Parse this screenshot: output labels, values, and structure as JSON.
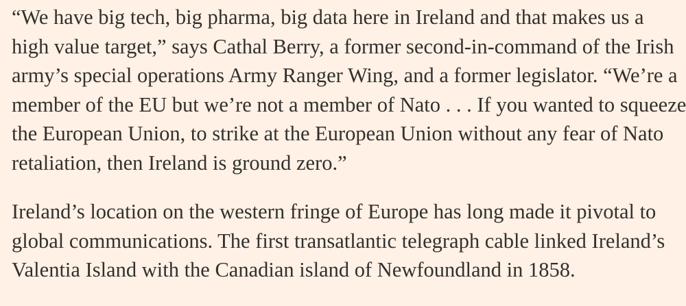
{
  "article": {
    "paragraphs": [
      {
        "lines": [
          "“We have big tech, big pharma, big data here in Ireland and that makes us a",
          "high value target,” says Cathal Berry, a former second-in-command of the Irish",
          "army’s special operations Army Ranger Wing, and a former legislator. “We’re a",
          "member of the EU but we’re not a member of Nato . . . If you wanted to squeeze",
          "the European Union, to strike at the European Union without any fear of Nato",
          "retaliation, then Ireland is ground zero.”"
        ]
      },
      {
        "lines": [
          "Ireland’s location on the western fringe of Europe has long made it pivotal to",
          "global communications. The first transatlantic telegraph cable linked Ireland’s",
          "Valentia Island with the Canadian island of Newfoundland in 1858."
        ]
      }
    ]
  },
  "colors": {
    "background": "#fff1e5",
    "text": "#33302e"
  }
}
